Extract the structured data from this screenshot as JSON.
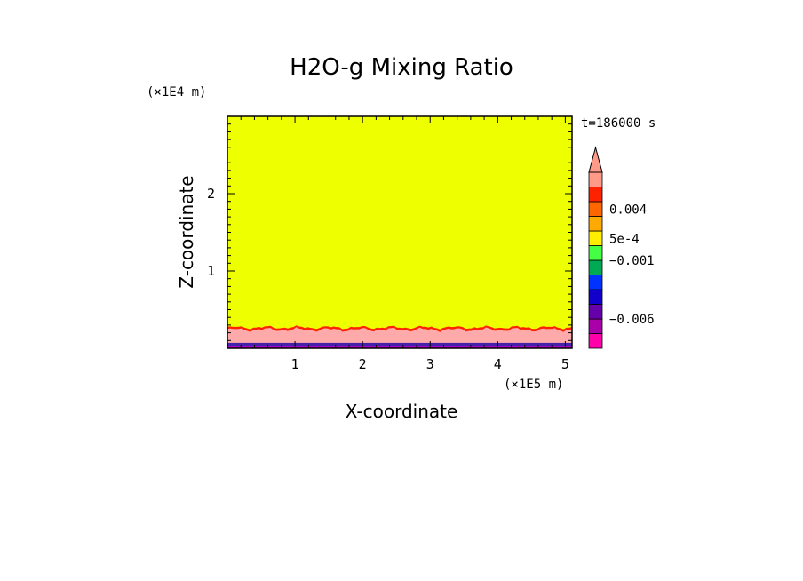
{
  "chart_data": {
    "type": "heatmap",
    "title": "H2O-g Mixing Ratio",
    "xlabel": "X-coordinate",
    "ylabel": "Z-coordinate",
    "x_unit": "(×1E5 m)",
    "y_unit": "(×1E4 m)",
    "time_label": "t=186000 s",
    "xlim": [
      0,
      5.1
    ],
    "ylim": [
      0,
      3.0
    ],
    "x_ticks": [
      1,
      2,
      3,
      4,
      5
    ],
    "y_ticks": [
      1,
      2
    ],
    "background_color": "#eeff00",
    "field_layers": [
      {
        "name": "surface",
        "z_bottom": 0.0,
        "z_top": 0.03,
        "color": "#aa00cc"
      },
      {
        "name": "cool-layer",
        "z_bottom": 0.03,
        "z_top": 0.07,
        "color": "#4422aa"
      },
      {
        "name": "moist-layer",
        "z_bottom": 0.07,
        "z_mean_top": 0.24,
        "color": "#ffaaaa"
      },
      {
        "name": "edge-layer",
        "z_mean_top": 0.27,
        "color": "#ff2200"
      }
    ],
    "colorbar": {
      "colors": [
        "#ff00aa",
        "#aa00aa",
        "#6600aa",
        "#1100cc",
        "#0033ff",
        "#00aa55",
        "#44ff44",
        "#ffee00",
        "#ffaa00",
        "#ff6600",
        "#ff2200",
        "#ff9988"
      ],
      "extend_top_color": "#ff9988",
      "labels": [
        "0.004",
        "5e-4",
        "−0.001",
        "−0.006"
      ],
      "label_positions": [
        9.5,
        7.5,
        6.0,
        2.0
      ]
    }
  }
}
